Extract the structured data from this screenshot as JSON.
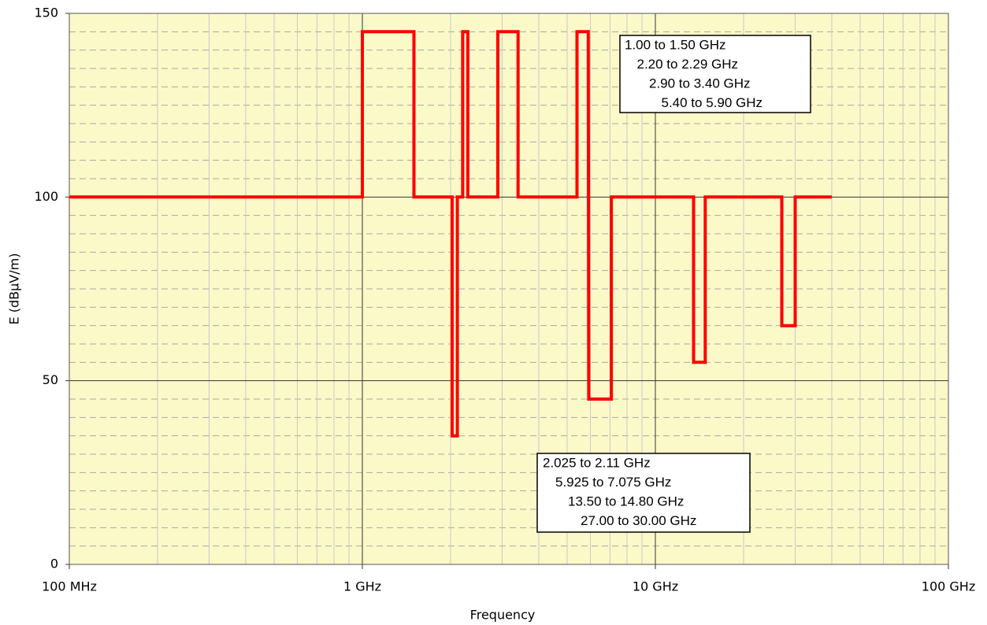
{
  "chart_data": {
    "type": "line",
    "x_label": "Frequency",
    "y_label": "E (dBµV/m)",
    "x_scale": "log",
    "xlim": [
      0.1,
      100
    ],
    "xticks": [
      {
        "value": 0.1,
        "label": "100 MHz"
      },
      {
        "value": 1,
        "label": "1 GHz"
      },
      {
        "value": 10,
        "label": "10 GHz"
      },
      {
        "value": 100,
        "label": "100 GHz"
      }
    ],
    "ylim": [
      0,
      150
    ],
    "yticks": [
      0,
      50,
      100,
      150
    ],
    "grid": true,
    "color": "#ff0000",
    "x": [
      0.1,
      1,
      1,
      1.5,
      1.5,
      2.025,
      2.025,
      2.11,
      2.11,
      2.2,
      2.2,
      2.29,
      2.29,
      2.9,
      2.9,
      3.4,
      3.4,
      5.4,
      5.4,
      5.9,
      5.925,
      7.075,
      7.075,
      13.5,
      13.5,
      14.8,
      14.8,
      27,
      27,
      30,
      30,
      40
    ],
    "values": [
      100,
      100,
      145,
      145,
      100,
      100,
      35,
      35,
      100,
      100,
      145,
      145,
      100,
      100,
      145,
      145,
      100,
      100,
      145,
      145,
      45,
      45,
      100,
      100,
      55,
      55,
      100,
      100,
      65,
      65,
      100,
      100
    ],
    "annotations": [
      {
        "lines": [
          "1.00 to 1.50 GHz",
          "2.20 to 2.29 GHz",
          "2.90 to 3.40 GHz",
          "5.40 to 5.90 GHz"
        ]
      },
      {
        "lines": [
          "2.025 to 2.11 GHz",
          "5.925 to 7.075 GHz",
          "13.50 to 14.80 GHz",
          "27.00 to 30.00 GHz"
        ]
      }
    ]
  }
}
